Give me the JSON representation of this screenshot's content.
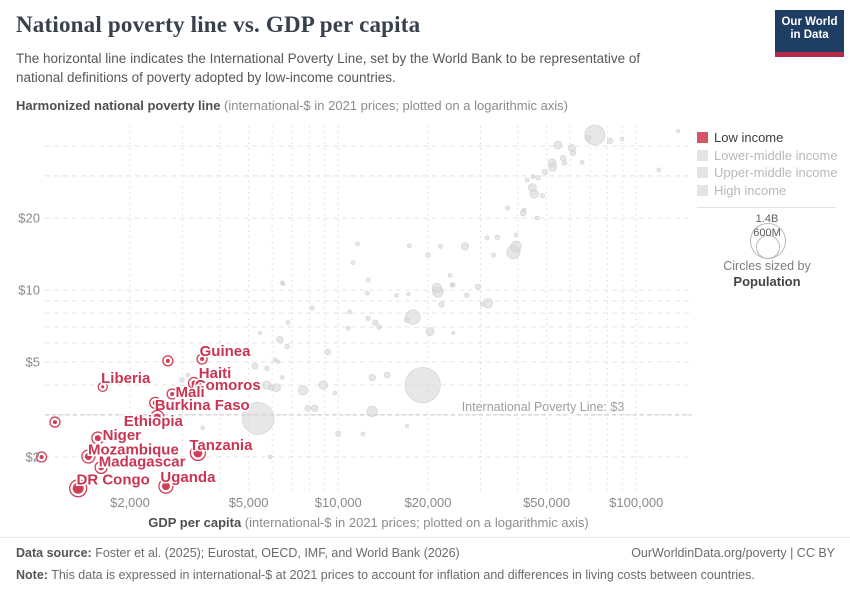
{
  "header": {
    "title": "National poverty line vs. GDP per capita",
    "subtitle": "The horizontal line indicates the International Poverty Line, set by the World Bank to be representative of national definitions of poverty adopted by low-income countries.",
    "logo_line1": "Our World",
    "logo_line2": "in Data",
    "logo_bg": "#1d3d63",
    "logo_bar": "#b5294b"
  },
  "legend": {
    "items": [
      {
        "label": "Low income",
        "active": true,
        "color": "#d65565"
      },
      {
        "label": "Lower-middle income",
        "active": false,
        "color": "#e4e4e4"
      },
      {
        "label": "Upper-middle income",
        "active": false,
        "color": "#e4e4e4"
      },
      {
        "label": "High income",
        "active": false,
        "color": "#e4e4e4"
      }
    ],
    "size_legend": {
      "big_label": "1.4B",
      "small_label": "600M",
      "caption": "Circles sized by",
      "caption_bold": "Population"
    }
  },
  "footer": {
    "source_prefix": "Data source:",
    "source_text": " Foster et al. (2025); Eurostat, OECD, IMF, and World Bank (2026)",
    "link_text": "OurWorldinData.org/poverty | CC BY",
    "note_prefix": "Note:",
    "note_text": " This data is expressed in international-$ at 2021 prices to account for inflation and differences in living costs between countries."
  },
  "chart_data": {
    "type": "scatter",
    "x_scale": "log",
    "y_scale": "log",
    "y_axis_title_bold": "Harmonized national poverty line",
    "y_axis_title_rest": " (international-$ in 2021 prices; plotted on a logarithmic axis)",
    "x_axis_title_bold": "GDP per capita",
    "x_axis_title_rest": " (international-$ in 2021 prices; plotted on a logarithmic axis)",
    "x_range": [
      1050,
      155000
    ],
    "y_range": [
      1.45,
      48
    ],
    "x_ticks": [
      {
        "v": 2000,
        "label": "$2,000"
      },
      {
        "v": 5000,
        "label": "$5,000"
      },
      {
        "v": 10000,
        "label": "$10,000"
      },
      {
        "v": 20000,
        "label": "$20,000"
      },
      {
        "v": 50000,
        "label": "$50,000"
      },
      {
        "v": 100000,
        "label": "$100,000"
      }
    ],
    "y_ticks": [
      {
        "v": 2,
        "label": "$2"
      },
      {
        "v": 5,
        "label": "$5"
      },
      {
        "v": 10,
        "label": "$10"
      },
      {
        "v": 20,
        "label": "$20"
      }
    ],
    "x_gridlines": [
      2000,
      3000,
      4000,
      5000,
      6000,
      7000,
      8000,
      9000,
      10000,
      20000,
      30000,
      40000,
      50000,
      60000,
      70000,
      80000,
      90000,
      100000
    ],
    "y_gridlines": [
      2,
      3,
      4,
      5,
      6,
      7,
      8,
      9,
      10,
      20,
      30,
      40
    ],
    "poverty_line": {
      "value": 3,
      "label": "International Poverty Line: $3"
    },
    "colors": {
      "low_income": "#cf3d57",
      "low_income_label": "#ca3553",
      "other": "#d8d8d8",
      "grid": "#e4e4e4",
      "grid_vertical": "#dcdcdc",
      "poverty_line": "#c6c6c6",
      "annotation_text": "#9e9e9e",
      "tick_text": "#8a8a8a"
    },
    "series": [
      {
        "name": "Low income",
        "labeled_points": [
          {
            "name": "Guinea",
            "gdp": 3490,
            "value": 5.14,
            "r": 2,
            "label_dx": 23,
            "label_dy": -8
          },
          {
            "name": "Haiti",
            "gdp": 3280,
            "value": 4.08,
            "r": 2.5,
            "label_dx": 21,
            "label_dy": -10
          },
          {
            "name": "Comoros",
            "gdp": 3350,
            "value": 3.97,
            "r": 1.5,
            "label_dx": 31,
            "label_dy": -1
          },
          {
            "name": "Liberia",
            "gdp": 1620,
            "value": 3.93,
            "r": 1.5,
            "label_dx": 23,
            "label_dy": -9
          },
          {
            "name": "Mali",
            "gdp": 2770,
            "value": 3.67,
            "r": 2,
            "label_dx": 18,
            "label_dy": -2
          },
          {
            "name": "Burkina Faso",
            "gdp": 2430,
            "value": 3.37,
            "r": 2.5,
            "label_dx": 47,
            "label_dy": 2
          },
          {
            "name": "Ethiopia",
            "gdp": 2470,
            "value": 2.94,
            "r": 3.5,
            "label_dx": -4,
            "label_dy": 4
          },
          {
            "name": "Niger",
            "gdp": 1560,
            "value": 2.4,
            "r": 3,
            "label_dx": 24,
            "label_dy": -3
          },
          {
            "name": "Mozambique",
            "gdp": 1450,
            "value": 2.01,
            "r": 3.5,
            "label_dx": 45,
            "label_dy": -7
          },
          {
            "name": "Madagascar",
            "gdp": 1600,
            "value": 1.81,
            "r": 3,
            "label_dx": 41,
            "label_dy": -6
          },
          {
            "name": "DR Congo",
            "gdp": 1340,
            "value": 1.48,
            "r": 5.5,
            "label_dx": 35,
            "label_dy": -9
          },
          {
            "name": "Uganda",
            "gdp": 2640,
            "value": 1.51,
            "r": 4,
            "label_dx": 22,
            "label_dy": -9
          },
          {
            "name": "Tanzania",
            "gdp": 3380,
            "value": 2.08,
            "r": 4.5,
            "label_dx": 23,
            "label_dy": -8
          }
        ],
        "unlabeled_points": [
          [
            1120,
            2.8,
            2
          ],
          [
            1010,
            2.0,
            2
          ],
          [
            2680,
            5.05,
            2
          ]
        ]
      },
      {
        "name": "Other income groups",
        "points": [
          [
            72600,
            44.5,
            10
          ],
          [
            68800,
            43.2,
            2.7
          ],
          [
            81600,
            42,
            2.7
          ],
          [
            89600,
            42.8,
            2
          ],
          [
            138000,
            46.2,
            1.7
          ],
          [
            54600,
            40.4,
            4
          ],
          [
            60800,
            39.2,
            3.7
          ],
          [
            61400,
            37.4,
            2.7
          ],
          [
            56800,
            35.6,
            2.7
          ],
          [
            52200,
            34,
            4
          ],
          [
            52400,
            32.6,
            4
          ],
          [
            57400,
            34,
            2.3
          ],
          [
            65800,
            34.2,
            2
          ],
          [
            49400,
            31.2,
            2.7
          ],
          [
            45000,
            29.8,
            2
          ],
          [
            46800,
            29.5,
            2.3
          ],
          [
            43000,
            28.8,
            2
          ],
          [
            44800,
            26.8,
            4
          ],
          [
            45400,
            25.2,
            4.3
          ],
          [
            48400,
            24.8,
            2.3
          ],
          [
            119000,
            31.8,
            2
          ],
          [
            42000,
            21.6,
            2
          ],
          [
            41700,
            21,
            3
          ],
          [
            37000,
            22,
            2
          ],
          [
            46500,
            20,
            2
          ],
          [
            39500,
            17,
            2
          ],
          [
            31600,
            16.5,
            2
          ],
          [
            34200,
            16.6,
            2.3
          ],
          [
            26600,
            15.2,
            3.7
          ],
          [
            22000,
            15.2,
            2
          ],
          [
            20000,
            14,
            2.3
          ],
          [
            39500,
            15.2,
            5.3
          ],
          [
            38700,
            14.4,
            6.7
          ],
          [
            33200,
            14,
            2
          ],
          [
            23700,
            11.5,
            2
          ],
          [
            24100,
            10.5,
            2.3
          ],
          [
            21400,
            10.2,
            4.7
          ],
          [
            11600,
            15.6,
            2
          ],
          [
            17300,
            15.3,
            2
          ],
          [
            11200,
            13,
            2
          ],
          [
            12600,
            11,
            2
          ],
          [
            6480,
            10.7,
            2
          ],
          [
            6540,
            10.6,
            1.7
          ],
          [
            12500,
            9.7,
            2
          ],
          [
            15700,
            9.5,
            2
          ],
          [
            17200,
            9.6,
            1.7
          ],
          [
            21600,
            9.8,
            5.3
          ],
          [
            24300,
            10.5,
            2
          ],
          [
            27000,
            9.5,
            2.3
          ],
          [
            29400,
            10.3,
            2.7
          ],
          [
            31800,
            8.8,
            4.7
          ],
          [
            30400,
            8.7,
            2
          ],
          [
            22200,
            8.7,
            2.7
          ],
          [
            8160,
            8.4,
            2.3
          ],
          [
            10900,
            8.1,
            2
          ],
          [
            12600,
            7.6,
            2.3
          ],
          [
            17800,
            7.7,
            7.3
          ],
          [
            17000,
            7.5,
            2.7
          ],
          [
            13300,
            7.3,
            2.7
          ],
          [
            13700,
            7,
            2.3
          ],
          [
            10800,
            6.9,
            2
          ],
          [
            20300,
            6.7,
            4
          ],
          [
            24300,
            6.6,
            1.7
          ],
          [
            6780,
            7.3,
            2
          ],
          [
            5460,
            6.6,
            1.7
          ],
          [
            6730,
            5.8,
            2.3
          ],
          [
            9220,
            5.5,
            3
          ],
          [
            6140,
            5.1,
            2
          ],
          [
            6280,
            5,
            1.7
          ],
          [
            5760,
            4.7,
            2.3
          ],
          [
            5960,
            3.9,
            2.7
          ],
          [
            6480,
            4.3,
            2
          ],
          [
            7620,
            3.8,
            4.7
          ],
          [
            8900,
            4,
            4.3
          ],
          [
            7900,
            3.2,
            3
          ],
          [
            9740,
            3.7,
            2
          ],
          [
            13000,
            4.3,
            3.3
          ],
          [
            14600,
            4.4,
            3
          ],
          [
            19200,
            4,
            17.7
          ],
          [
            13000,
            3.1,
            5.3
          ],
          [
            17000,
            2.7,
            1.7
          ],
          [
            12100,
            2.5,
            2
          ],
          [
            10000,
            2.5,
            2.7
          ],
          [
            8340,
            3.2,
            3.3
          ],
          [
            5380,
            2.9,
            16
          ],
          [
            5900,
            2,
            2
          ],
          [
            6370,
            6.2,
            3.3
          ],
          [
            5250,
            4.8,
            3
          ],
          [
            5760,
            4,
            4.3
          ],
          [
            6200,
            3.9,
            4
          ],
          [
            2990,
            4.2,
            2.3
          ],
          [
            3130,
            4.4,
            2
          ],
          [
            3510,
            2.65,
            2
          ]
        ]
      }
    ]
  }
}
